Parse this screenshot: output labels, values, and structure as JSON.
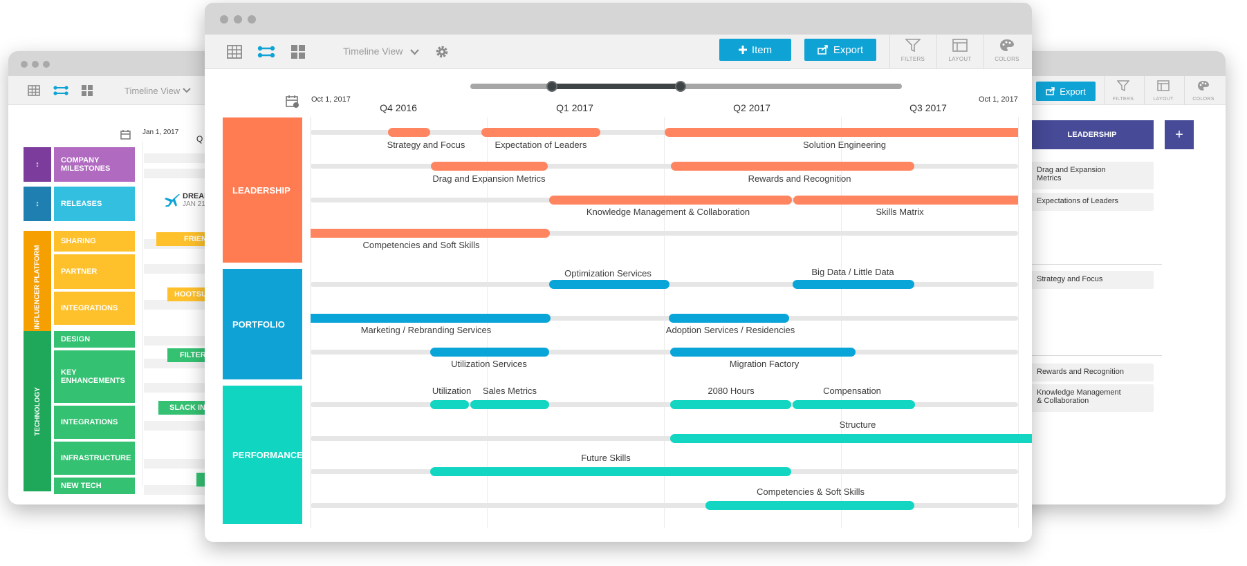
{
  "colors": {
    "leadership": "#ff7b52",
    "leadership_bar": "#ff8560",
    "portfolio": "#0ea2d5",
    "portfolio_bar": "#0aa5d8",
    "performance": "#0fd5c1",
    "performance_bar": "#12d6c2",
    "accent": "#0ea2d5",
    "navy": "#464a97"
  },
  "main": {
    "toolbar": {
      "view_icons": [
        "table-icon",
        "timeline-icon",
        "grid-icon"
      ],
      "view_dropdown": "Timeline View",
      "item_button": "Item",
      "export_button": "Export",
      "tools": [
        {
          "icon": "filter-icon",
          "label": "FILTERS"
        },
        {
          "icon": "layout-icon",
          "label": "LAYOUT"
        },
        {
          "icon": "palette-icon",
          "label": "COLORS"
        }
      ]
    },
    "timeline": {
      "start_date": "Oct 1, 2017",
      "end_date": "Oct 1, 2017",
      "quarters": [
        "Q4 2016",
        "Q1 2017",
        "Q2 2017",
        "Q3 2017"
      ]
    },
    "lanes": [
      {
        "key": "leadership",
        "label": "LEADERSHIP"
      },
      {
        "key": "portfolio",
        "label": "PORTFOLIO"
      },
      {
        "key": "performance",
        "label": "PERFORMANCE"
      }
    ],
    "items": [
      "Strategy and Focus",
      "Expectation of Leaders",
      "Solution Engineering",
      "Drag and Expansion Metrics",
      "Rewards and Recognition",
      "Knowledge Management & Collaboration",
      "Skills Matrix",
      "Competencies and Soft Skills",
      "Optimization Services",
      "Big Data / Little Data",
      "Marketing / Rebranding Services",
      "Adoption Services / Residencies",
      "Utilization Services",
      "Migration Factory",
      "Utilization",
      "Sales Metrics",
      "2080 Hours",
      "Compensation",
      "Structure",
      "Future Skills",
      "Competencies & Soft Skills"
    ]
  },
  "left": {
    "view_dropdown": "Timeline View",
    "start_date": "Jan 1, 2017",
    "quarter_partial": "Q",
    "groups": [
      {
        "label": "COMPANY MILESTONES",
        "side": "↕"
      },
      {
        "label": "RELEASES",
        "side": "↕"
      },
      {
        "side_label": "INFLUENCER PLATFORM",
        "rows": [
          "SHARING",
          "PARTNER",
          "INTEGRATIONS"
        ]
      },
      {
        "side_label": "TECHNOLOGY",
        "rows": [
          "DESIGN",
          "KEY ENHANCEMENTS",
          "INTEGRATIONS",
          "INFRASTRUCTURE",
          "NEW TECH"
        ]
      }
    ],
    "milestone": {
      "title": "DREAM",
      "date": "JAN 21"
    },
    "bars": [
      "FRIEN",
      "HOOTSU",
      "FILTERS",
      "SLACK INT"
    ]
  },
  "right": {
    "export_button": "Export",
    "tools": [
      {
        "icon": "filter-icon",
        "label": "FILTERS"
      },
      {
        "icon": "layout-icon",
        "label": "LAYOUT"
      },
      {
        "icon": "palette-icon",
        "label": "COLORS"
      }
    ],
    "header": "LEADERSHIP",
    "add_button": "+",
    "cards": [
      "Drag and Expansion Metrics",
      "Expectations of Leaders",
      "Strategy and Focus",
      "Rewards and Recognition",
      "Knowledge Management & Collaboration"
    ]
  }
}
